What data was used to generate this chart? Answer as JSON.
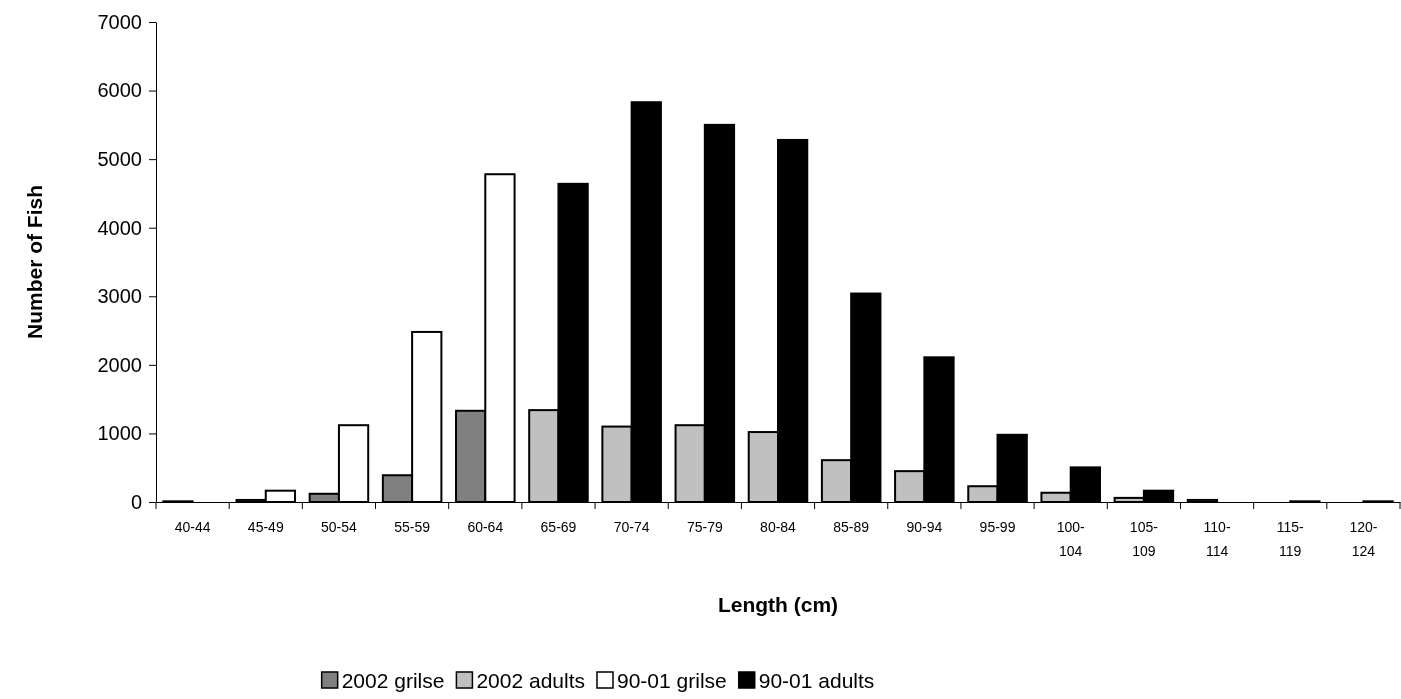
{
  "chart_data": {
    "type": "bar",
    "xlabel": "Length (cm)",
    "ylabel": "Number of Fish",
    "categories": [
      "40-44",
      "45-49",
      "50-54",
      "55-59",
      "60-64",
      "65-69",
      "70-74",
      "75-79",
      "80-84",
      "85-89",
      "90-94",
      "95-99",
      "100-104",
      "105-109",
      "110-114",
      "115-119",
      "120-124"
    ],
    "series": [
      {
        "name": "2002 grilse",
        "color": "#808080",
        "values": [
          10,
          30,
          120,
          390,
          1330,
          null,
          null,
          null,
          null,
          null,
          null,
          null,
          null,
          null,
          null,
          null,
          null
        ]
      },
      {
        "name": "2002 adults",
        "color": "#c0c0c0",
        "values": [
          null,
          null,
          null,
          null,
          null,
          1340,
          1100,
          1120,
          1020,
          610,
          450,
          230,
          135,
          60,
          30,
          null,
          null
        ]
      },
      {
        "name": "90-01 grilse",
        "color": "#ffffff",
        "values": [
          null,
          165,
          1120,
          2480,
          4780,
          null,
          null,
          null,
          null,
          null,
          null,
          null,
          null,
          null,
          null,
          null,
          null
        ]
      },
      {
        "name": "90-01 adults",
        "color": "#000000",
        "values": [
          null,
          null,
          null,
          null,
          null,
          4640,
          5830,
          5500,
          5280,
          3040,
          2110,
          980,
          505,
          165,
          null,
          10,
          10
        ]
      }
    ],
    "ylim": [
      0,
      7000
    ],
    "yticks": [
      0,
      1000,
      2000,
      3000,
      4000,
      5000,
      6000,
      7000
    ],
    "grid": false,
    "legend": "bottom"
  }
}
